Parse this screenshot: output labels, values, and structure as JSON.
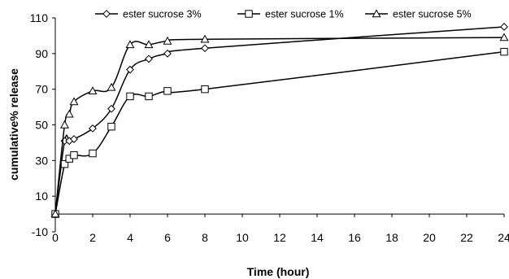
{
  "chart_data": {
    "type": "line",
    "title": "",
    "xlabel": "Time (hour)",
    "ylabel": "cumulative% release",
    "xlim": [
      0,
      24
    ],
    "ylim": [
      -10,
      110
    ],
    "xticks": [
      0,
      2,
      4,
      6,
      8,
      10,
      12,
      14,
      16,
      18,
      20,
      22,
      24
    ],
    "yticks": [
      -10,
      10,
      30,
      50,
      70,
      90,
      110
    ],
    "grid": false,
    "legend_position": "top",
    "series": [
      {
        "name": "ester sucrose 3%",
        "marker": "diamond",
        "x": [
          0,
          0.5,
          0.75,
          1,
          2,
          3,
          4,
          5,
          6,
          8,
          24
        ],
        "y": [
          0,
          41,
          41,
          42,
          48,
          59,
          81,
          87,
          90,
          93,
          105
        ]
      },
      {
        "name": "ester sucrose 1%",
        "marker": "square",
        "x": [
          0,
          0.5,
          0.75,
          1,
          2,
          3,
          4,
          5,
          6,
          8,
          24
        ],
        "y": [
          0,
          28,
          31,
          33,
          34,
          49,
          66,
          66,
          69,
          70,
          91
        ]
      },
      {
        "name": "ester sucrose 5%",
        "marker": "triangle",
        "x": [
          0,
          0.5,
          0.75,
          1,
          2,
          3,
          4,
          5,
          6,
          8,
          24
        ],
        "y": [
          0,
          50,
          56,
          63,
          69,
          71,
          95,
          95,
          97,
          98,
          99
        ]
      }
    ]
  }
}
